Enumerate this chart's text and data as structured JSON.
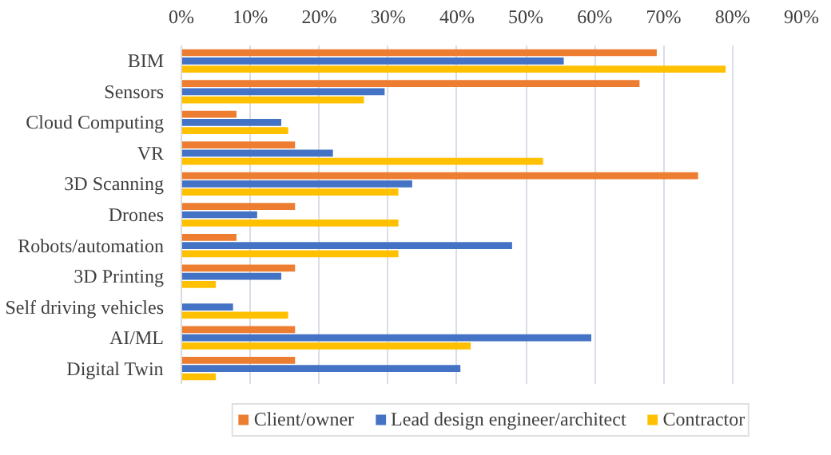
{
  "chart_data": {
    "type": "bar",
    "orientation": "horizontal",
    "categories": [
      "BIM",
      "Sensors",
      "Cloud Computing",
      "VR",
      "3D Scanning",
      "Drones",
      "Robots/automation",
      "3D Printing",
      "Self driving vehicles",
      "AI/ML",
      "Digital Twin"
    ],
    "series": [
      {
        "name": "Client/owner",
        "color": "#ed7d31",
        "values": [
          69,
          66.5,
          8,
          16.5,
          75,
          16.5,
          8,
          16.5,
          0,
          16.5,
          16.5
        ]
      },
      {
        "name": "Lead design engineer/architect",
        "color": "#4472c4",
        "values": [
          55.5,
          29.5,
          14.5,
          22,
          33.5,
          11,
          48,
          14.5,
          7.5,
          59.5,
          40.5
        ]
      },
      {
        "name": "Contractor",
        "color": "#ffc000",
        "values": [
          79,
          26.5,
          15.5,
          52.5,
          31.5,
          31.5,
          31.5,
          5,
          15.5,
          42,
          5
        ]
      }
    ],
    "xlim": [
      0,
      90
    ],
    "xticks": [
      {
        "value": 0,
        "label": "0%"
      },
      {
        "value": 10,
        "label": "10%"
      },
      {
        "value": 20,
        "label": "20%"
      },
      {
        "value": 30,
        "label": "30%"
      },
      {
        "value": 40,
        "label": "40%"
      },
      {
        "value": 50,
        "label": "50%"
      },
      {
        "value": 60,
        "label": "60%"
      },
      {
        "value": 70,
        "label": "70%"
      },
      {
        "value": 80,
        "label": "80%"
      },
      {
        "value": 90,
        "label": "90%"
      }
    ],
    "grid": "x",
    "legend": "bottom"
  }
}
